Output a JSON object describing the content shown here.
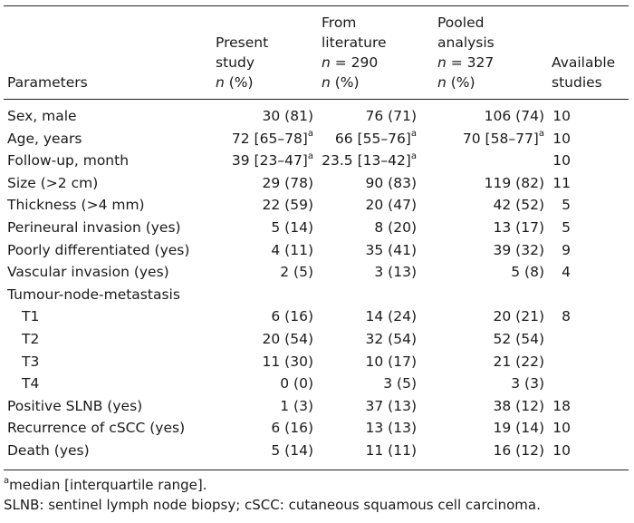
{
  "header": {
    "parameters": "Parameters",
    "present": [
      "Present",
      "study",
      "n (%)"
    ],
    "literature": [
      "From",
      "literature",
      "n = 290",
      "n (%)"
    ],
    "pooled": [
      "Pooled",
      "analysis",
      "n = 327",
      "n (%)"
    ],
    "available": [
      "Available",
      "studies"
    ]
  },
  "rows": [
    {
      "param": "Sex, male",
      "present": "30 (81)",
      "lit": "76 (71)",
      "pooled": "106 (74)",
      "avail": "10"
    },
    {
      "param": "Age, years",
      "present": "72 [65–78]",
      "present_sup": "a",
      "lit": "66 [55–76]",
      "lit_sup": "a",
      "pooled": "70 [58–77]",
      "pooled_sup": "a",
      "avail": "10"
    },
    {
      "param": "Follow-up, month",
      "present": "39 [23–47]",
      "present_sup": "a",
      "lit": "23.5 [13–42]",
      "lit_sup": "a",
      "pooled": "",
      "avail": "10"
    },
    {
      "param": "Size (>2 cm)",
      "present": "29 (78)",
      "lit": "90 (83)",
      "pooled": "119 (82)",
      "avail": "11"
    },
    {
      "param": "Thickness (>4 mm)",
      "present": "22 (59)",
      "lit": "20 (47)",
      "pooled": "42 (52)",
      "avail": "5"
    },
    {
      "param": "Perineural invasion (yes)",
      "present": "5 (14)",
      "lit": "8 (20)",
      "pooled": "13 (17)",
      "avail": "5"
    },
    {
      "param": "Poorly differentiated (yes)",
      "present": "4 (11)",
      "lit": "35 (41)",
      "pooled": "39 (32)",
      "avail": "9"
    },
    {
      "param": "Vascular invasion (yes)",
      "present": "2 (5)",
      "lit": "3 (13)",
      "pooled": "5 (8)",
      "avail": "4"
    },
    {
      "param": "Tumour-node-metastasis",
      "present": "",
      "lit": "",
      "pooled": "",
      "avail": ""
    },
    {
      "param": "T1",
      "indent": true,
      "present": "6 (16)",
      "lit": "14 (24)",
      "pooled": "20 (21)",
      "avail": "8"
    },
    {
      "param": "T2",
      "indent": true,
      "present": "20 (54)",
      "lit": "32 (54)",
      "pooled": "52 (54)",
      "avail": ""
    },
    {
      "param": "T3",
      "indent": true,
      "present": "11 (30)",
      "lit": "10 (17)",
      "pooled": "21 (22)",
      "avail": ""
    },
    {
      "param": "T4",
      "indent": true,
      "present": "0 (0)",
      "lit": "3 (5)",
      "pooled": "3 (3)",
      "avail": ""
    },
    {
      "param": "Positive SLNB (yes)",
      "present": "1 (3)",
      "lit": "37 (13)",
      "pooled": "38 (12)",
      "avail": "18"
    },
    {
      "param": "Recurrence of cSCC (yes)",
      "present": "6 (16)",
      "lit": "13 (13)",
      "pooled": "19 (14)",
      "avail": "10"
    },
    {
      "param": "Death (yes)",
      "present": "5 (14)",
      "lit": "11 (11)",
      "pooled": "16 (12)",
      "avail": "10"
    }
  ],
  "footnotes": {
    "a_mark": "a",
    "a_text": "median [interquartile range].",
    "abbrev": "SLNB: sentinel lymph node biopsy; cSCC: cutaneous squamous cell carcinoma."
  }
}
